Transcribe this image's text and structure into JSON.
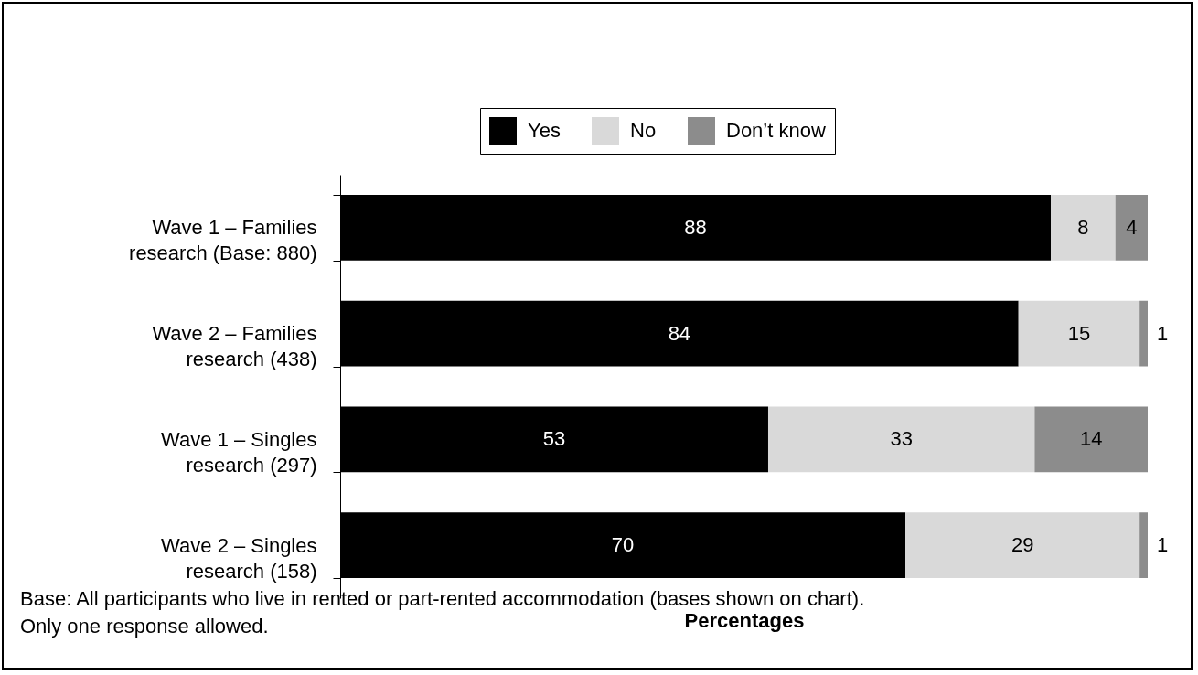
{
  "chart_data": {
    "type": "bar",
    "orientation": "horizontal",
    "stacked": true,
    "xlabel": "Percentages",
    "categories": [
      "Wave 1 – Families research (Base: 880)",
      "Wave 2 – Families research (438)",
      "Wave 1 – Singles research (297)",
      "Wave 2 – Singles research (158)"
    ],
    "series": [
      {
        "name": "Yes",
        "color": "#000000",
        "values": [
          88,
          84,
          53,
          70
        ]
      },
      {
        "name": "No",
        "color": "#d9d9d9",
        "values": [
          8,
          15,
          33,
          29
        ]
      },
      {
        "name": "Don’t know",
        "color": "#8c8c8c",
        "values": [
          4,
          1,
          14,
          1
        ]
      }
    ],
    "xlim": [
      0,
      100
    ],
    "data_labels": true,
    "legend": "top",
    "tick_labels": "y",
    "annotations": [
      "Base: All participants who live in rented or part-rented accommodation (bases shown on chart).",
      "Only one response allowed."
    ]
  }
}
